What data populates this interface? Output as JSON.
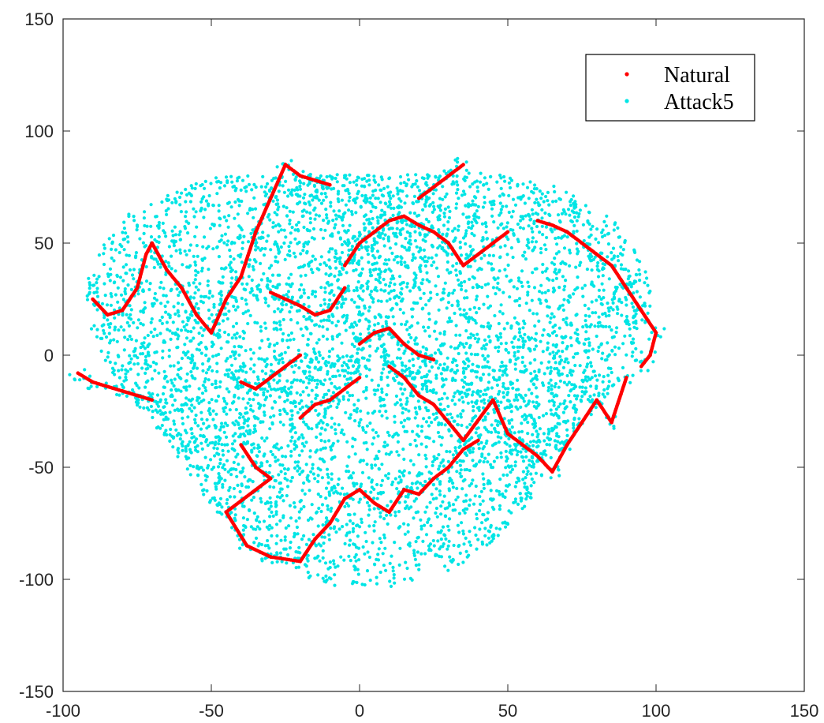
{
  "chart_data": {
    "type": "scatter",
    "title": "",
    "xlabel": "",
    "ylabel": "",
    "xlim": [
      -100,
      150
    ],
    "ylim": [
      -150,
      150
    ],
    "xticks": [
      -100,
      -50,
      0,
      50,
      100,
      150
    ],
    "yticks": [
      -150,
      -100,
      -50,
      0,
      50,
      100,
      150
    ],
    "grid": false,
    "legend": {
      "placement": "top-right"
    },
    "series": [
      {
        "name": "Natural",
        "color": "#ff0000",
        "marker": "dot",
        "description_points": [
          [
            -95,
            -8
          ],
          [
            -90,
            -12
          ],
          [
            -85,
            -14
          ],
          [
            -80,
            -16
          ],
          [
            -75,
            -18
          ],
          [
            -70,
            -20
          ],
          [
            -90,
            25
          ],
          [
            -85,
            18
          ],
          [
            -80,
            20
          ],
          [
            -75,
            30
          ],
          [
            -72,
            45
          ],
          [
            -70,
            50
          ],
          [
            -65,
            38
          ],
          [
            -60,
            30
          ],
          [
            -55,
            18
          ],
          [
            -50,
            10
          ],
          [
            -45,
            25
          ],
          [
            -40,
            35
          ],
          [
            -35,
            55
          ],
          [
            -30,
            70
          ],
          [
            -25,
            85
          ],
          [
            -20,
            80
          ],
          [
            -15,
            78
          ],
          [
            -10,
            76
          ],
          [
            -40,
            -40
          ],
          [
            -35,
            -50
          ],
          [
            -30,
            -55
          ],
          [
            -45,
            -70
          ],
          [
            -38,
            -85
          ],
          [
            -30,
            -90
          ],
          [
            -20,
            -92
          ],
          [
            -15,
            -82
          ],
          [
            -10,
            -75
          ],
          [
            -5,
            -64
          ],
          [
            0,
            -60
          ],
          [
            5,
            -66
          ],
          [
            10,
            -70
          ],
          [
            15,
            -60
          ],
          [
            20,
            -62
          ],
          [
            25,
            -55
          ],
          [
            30,
            -50
          ],
          [
            35,
            -42
          ],
          [
            40,
            -38
          ],
          [
            0,
            -10
          ],
          [
            -5,
            -15
          ],
          [
            -10,
            -20
          ],
          [
            -15,
            -22
          ],
          [
            -20,
            -28
          ],
          [
            10,
            -5
          ],
          [
            15,
            -10
          ],
          [
            20,
            -18
          ],
          [
            25,
            -22
          ],
          [
            30,
            -30
          ],
          [
            35,
            -38
          ],
          [
            45,
            -20
          ],
          [
            50,
            -35
          ],
          [
            55,
            -40
          ],
          [
            60,
            -45
          ],
          [
            65,
            -52
          ],
          [
            70,
            -40
          ],
          [
            75,
            -30
          ],
          [
            80,
            -20
          ],
          [
            85,
            -30
          ],
          [
            90,
            -10
          ],
          [
            60,
            60
          ],
          [
            65,
            58
          ],
          [
            70,
            55
          ],
          [
            75,
            50
          ],
          [
            80,
            45
          ],
          [
            85,
            40
          ],
          [
            90,
            30
          ],
          [
            95,
            20
          ],
          [
            100,
            10
          ],
          [
            98,
            0
          ],
          [
            95,
            -5
          ],
          [
            -5,
            40
          ],
          [
            0,
            50
          ],
          [
            5,
            55
          ],
          [
            10,
            60
          ],
          [
            15,
            62
          ],
          [
            20,
            58
          ],
          [
            25,
            55
          ],
          [
            30,
            50
          ],
          [
            35,
            40
          ],
          [
            40,
            45
          ],
          [
            45,
            50
          ],
          [
            50,
            55
          ],
          [
            20,
            70
          ],
          [
            25,
            75
          ],
          [
            30,
            80
          ],
          [
            35,
            85
          ],
          [
            -5,
            30
          ],
          [
            -10,
            20
          ],
          [
            -15,
            18
          ],
          [
            -20,
            22
          ],
          [
            -25,
            25
          ],
          [
            -30,
            28
          ],
          [
            -20,
            0
          ],
          [
            -25,
            -5
          ],
          [
            -30,
            -10
          ],
          [
            -35,
            -15
          ],
          [
            -40,
            -12
          ],
          [
            0,
            5
          ],
          [
            5,
            10
          ],
          [
            10,
            12
          ],
          [
            15,
            5
          ],
          [
            20,
            0
          ],
          [
            25,
            -2
          ]
        ]
      },
      {
        "name": "Attack5",
        "color": "#00e5e5",
        "marker": "dot",
        "description_points": []
      }
    ],
    "cluster_extent": {
      "x_range": [
        -97,
        103
      ],
      "y_range": [
        -102,
        103
      ]
    }
  }
}
